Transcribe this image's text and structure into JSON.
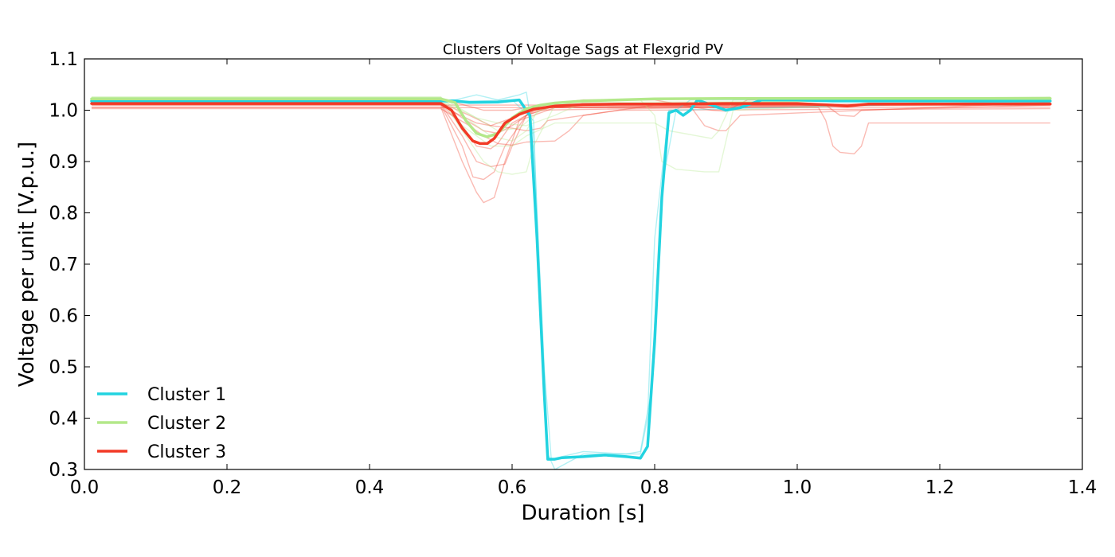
{
  "chart_data": {
    "type": "line",
    "title": "Clusters Of Voltage Sags at Flexgrid PV",
    "xlabel": "Duration [s]",
    "ylabel": "Voltage per unit [V.p.u.]",
    "xlim": [
      0.0,
      1.4
    ],
    "ylim": [
      0.3,
      1.1
    ],
    "xticks": [
      "0.0",
      "0.2",
      "0.4",
      "0.6",
      "0.8",
      "1.0",
      "1.2",
      "1.4"
    ],
    "yticks": [
      "0.3",
      "0.4",
      "0.5",
      "0.6",
      "0.7",
      "0.8",
      "0.9",
      "1.0",
      "1.1"
    ],
    "grid": false,
    "legend_position": "lower-left",
    "series": [
      {
        "name": "Cluster 1",
        "color": "#22d3e0",
        "x": [
          0.01,
          0.5,
          0.52,
          0.54,
          0.58,
          0.61,
          0.625,
          0.635,
          0.645,
          0.65,
          0.66,
          0.67,
          0.7,
          0.73,
          0.76,
          0.78,
          0.79,
          0.8,
          0.81,
          0.82,
          0.83,
          0.84,
          0.85,
          0.86,
          0.88,
          0.9,
          0.92,
          0.95,
          1.0,
          1.05,
          1.1,
          1.355
        ],
        "y": [
          1.018,
          1.018,
          1.018,
          1.015,
          1.016,
          1.02,
          0.99,
          0.75,
          0.45,
          0.32,
          0.32,
          0.323,
          0.325,
          0.328,
          0.325,
          0.322,
          0.345,
          0.55,
          0.83,
          0.995,
          1.0,
          0.99,
          1.0,
          1.02,
          1.01,
          1.0,
          1.005,
          1.02,
          1.02,
          1.018,
          1.018,
          1.018
        ]
      },
      {
        "name": "Cluster 2",
        "color": "#b3e88a",
        "x": [
          0.01,
          0.5,
          0.52,
          0.535,
          0.55,
          0.565,
          0.58,
          0.6,
          0.62,
          0.64,
          0.66,
          0.7,
          0.8,
          0.9,
          1.0,
          1.355
        ],
        "y": [
          1.022,
          1.022,
          1.015,
          0.98,
          0.955,
          0.948,
          0.955,
          0.985,
          1.003,
          1.01,
          1.014,
          1.018,
          1.022,
          1.023,
          1.023,
          1.023
        ]
      },
      {
        "name": "Cluster 3",
        "color": "#f23a26",
        "x": [
          0.01,
          0.5,
          0.515,
          0.53,
          0.545,
          0.555,
          0.565,
          0.575,
          0.59,
          0.61,
          0.63,
          0.66,
          0.7,
          0.75,
          0.8,
          0.9,
          1.0,
          1.05,
          1.07,
          1.1,
          1.355
        ],
        "y": [
          1.013,
          1.013,
          1.0,
          0.965,
          0.94,
          0.935,
          0.935,
          0.945,
          0.975,
          0.992,
          1.002,
          1.008,
          1.011,
          1.012,
          1.012,
          1.013,
          1.013,
          1.01,
          1.008,
          1.012,
          1.012
        ]
      }
    ]
  }
}
